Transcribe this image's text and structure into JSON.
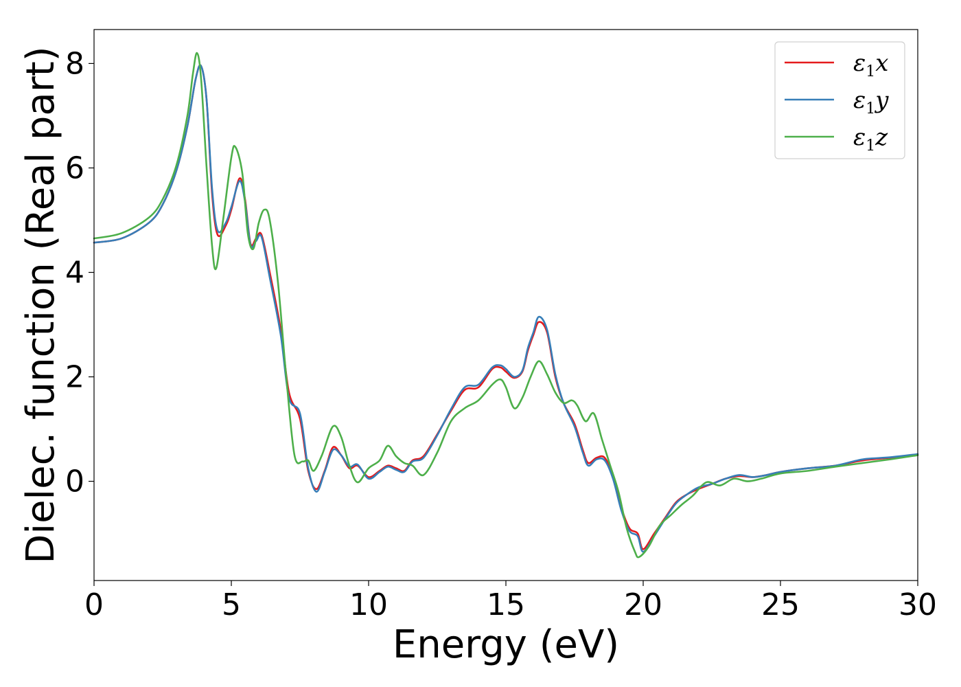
{
  "chart_data": {
    "type": "line",
    "xlabel": "Energy (eV)",
    "ylabel": "Dielec. function (Real part)",
    "xlim": [
      0,
      30
    ],
    "ylim": [
      -1.9,
      8.65
    ],
    "xticks": [
      0,
      5,
      10,
      15,
      20,
      25,
      30
    ],
    "xtick_labels": [
      "0",
      "5",
      "10",
      "15",
      "20",
      "25",
      "30"
    ],
    "yticks": [
      0,
      2,
      4,
      6,
      8
    ],
    "ytick_labels": [
      "0",
      "2",
      "4",
      "6",
      "8"
    ],
    "grid": false,
    "legend_position": "top-right",
    "series": [
      {
        "name": "ε₁x",
        "legend_base": "ε",
        "legend_sub": "1",
        "legend_tail": "x",
        "color": "#e41a1c",
        "x": [
          0,
          1,
          2,
          2.5,
          3,
          3.4,
          3.7,
          3.9,
          4.1,
          4.3,
          4.5,
          4.8,
          5.0,
          5.3,
          5.5,
          5.7,
          5.9,
          6.1,
          6.4,
          6.8,
          7.1,
          7.5,
          7.8,
          8.1,
          8.4,
          8.7,
          9.0,
          9.3,
          9.6,
          10.0,
          10.4,
          10.7,
          11.0,
          11.3,
          11.6,
          12.0,
          12.5,
          13.0,
          13.5,
          14.0,
          14.5,
          14.8,
          15.0,
          15.3,
          15.6,
          15.8,
          16.0,
          16.2,
          16.5,
          16.8,
          17.1,
          17.5,
          17.8,
          18.0,
          18.3,
          18.6,
          18.9,
          19.2,
          19.5,
          19.8,
          20.0,
          20.4,
          20.8,
          21.2,
          21.6,
          22.0,
          22.5,
          23.0,
          23.5,
          24.0,
          24.5,
          25.0,
          26.0,
          27.0,
          28.0,
          29.0,
          30.0
        ],
        "y": [
          4.57,
          4.65,
          4.95,
          5.3,
          5.95,
          6.8,
          7.7,
          7.95,
          7.3,
          5.5,
          4.72,
          4.9,
          5.2,
          5.8,
          5.4,
          4.55,
          4.65,
          4.72,
          4.0,
          2.9,
          1.7,
          1.2,
          0.2,
          -0.15,
          0.2,
          0.65,
          0.5,
          0.25,
          0.3,
          0.08,
          0.2,
          0.3,
          0.25,
          0.2,
          0.4,
          0.48,
          0.9,
          1.35,
          1.75,
          1.8,
          2.15,
          2.18,
          2.1,
          1.98,
          2.1,
          2.5,
          2.8,
          3.05,
          2.85,
          2.0,
          1.5,
          1.1,
          0.6,
          0.35,
          0.45,
          0.45,
          0.1,
          -0.5,
          -0.9,
          -1.0,
          -1.3,
          -1.0,
          -0.7,
          -0.4,
          -0.25,
          -0.15,
          -0.05,
          0.05,
          0.1,
          0.08,
          0.12,
          0.18,
          0.25,
          0.3,
          0.4,
          0.45,
          0.5
        ]
      },
      {
        "name": "ε₁y",
        "legend_base": "ε",
        "legend_sub": "1",
        "legend_tail": "y",
        "color": "#377eb8",
        "x": [
          0,
          1,
          2,
          2.5,
          3,
          3.4,
          3.7,
          3.9,
          4.1,
          4.3,
          4.5,
          4.8,
          5.0,
          5.3,
          5.5,
          5.7,
          5.9,
          6.1,
          6.4,
          6.8,
          7.1,
          7.5,
          7.8,
          8.1,
          8.4,
          8.7,
          9.0,
          9.3,
          9.6,
          10.0,
          10.4,
          10.7,
          11.0,
          11.3,
          11.6,
          12.0,
          12.5,
          13.0,
          13.5,
          14.0,
          14.5,
          14.8,
          15.0,
          15.3,
          15.6,
          15.8,
          16.0,
          16.2,
          16.5,
          16.8,
          17.1,
          17.5,
          17.8,
          18.0,
          18.3,
          18.6,
          18.9,
          19.2,
          19.5,
          19.8,
          20.0,
          20.4,
          20.8,
          21.2,
          21.6,
          22.0,
          22.5,
          23.0,
          23.5,
          24.0,
          24.5,
          25.0,
          26.0,
          27.0,
          28.0,
          29.0,
          30.0
        ],
        "y": [
          4.57,
          4.65,
          4.95,
          5.3,
          5.95,
          6.8,
          7.7,
          7.95,
          7.3,
          5.6,
          4.8,
          4.95,
          5.25,
          5.75,
          5.35,
          4.52,
          4.6,
          4.68,
          3.9,
          2.8,
          1.6,
          1.3,
          0.25,
          -0.2,
          0.18,
          0.6,
          0.5,
          0.28,
          0.32,
          0.05,
          0.18,
          0.28,
          0.22,
          0.18,
          0.38,
          0.45,
          0.88,
          1.38,
          1.8,
          1.85,
          2.18,
          2.22,
          2.15,
          2.0,
          2.12,
          2.55,
          2.85,
          3.15,
          2.9,
          2.05,
          1.5,
          1.05,
          0.55,
          0.3,
          0.42,
          0.4,
          0.05,
          -0.55,
          -0.95,
          -1.05,
          -1.35,
          -1.05,
          -0.72,
          -0.42,
          -0.25,
          -0.12,
          -0.05,
          0.05,
          0.12,
          0.08,
          0.12,
          0.18,
          0.25,
          0.3,
          0.42,
          0.46,
          0.52
        ]
      },
      {
        "name": "ε₁z",
        "legend_base": "ε",
        "legend_sub": "1",
        "legend_tail": "z",
        "color": "#4daf4a",
        "x": [
          0,
          1,
          2,
          2.5,
          3,
          3.4,
          3.6,
          3.75,
          3.9,
          4.1,
          4.3,
          4.45,
          4.7,
          5.0,
          5.15,
          5.4,
          5.6,
          5.8,
          6.0,
          6.2,
          6.4,
          6.7,
          7.0,
          7.3,
          7.6,
          7.8,
          8.0,
          8.3,
          8.7,
          9.0,
          9.3,
          9.6,
          10.0,
          10.4,
          10.7,
          11.0,
          11.3,
          11.6,
          12.0,
          12.5,
          13.0,
          13.5,
          14.0,
          14.5,
          14.8,
          15.0,
          15.3,
          15.6,
          15.9,
          16.2,
          16.5,
          16.8,
          17.1,
          17.4,
          17.6,
          17.9,
          18.2,
          18.5,
          18.8,
          19.1,
          19.4,
          19.7,
          19.85,
          20.2,
          20.6,
          21.0,
          21.4,
          21.8,
          22.3,
          22.8,
          23.3,
          23.8,
          24.3,
          25.0,
          26.0,
          27.0,
          28.0,
          29.0,
          30.0
        ],
        "y": [
          4.65,
          4.75,
          5.05,
          5.4,
          6.05,
          7.0,
          7.8,
          8.2,
          7.7,
          6.0,
          4.5,
          4.08,
          5.0,
          6.2,
          6.4,
          5.9,
          4.75,
          4.45,
          4.95,
          5.2,
          5.0,
          3.8,
          2.0,
          0.5,
          0.38,
          0.4,
          0.2,
          0.5,
          1.05,
          0.85,
          0.3,
          -0.02,
          0.25,
          0.4,
          0.68,
          0.48,
          0.35,
          0.3,
          0.12,
          0.55,
          1.15,
          1.4,
          1.55,
          1.85,
          1.95,
          1.8,
          1.4,
          1.6,
          2.0,
          2.3,
          2.05,
          1.7,
          1.5,
          1.55,
          1.45,
          1.15,
          1.3,
          0.8,
          0.3,
          -0.2,
          -0.9,
          -1.35,
          -1.45,
          -1.25,
          -0.85,
          -0.65,
          -0.45,
          -0.28,
          -0.02,
          -0.08,
          0.05,
          0.0,
          0.05,
          0.15,
          0.2,
          0.28,
          0.35,
          0.42,
          0.5
        ]
      }
    ]
  }
}
